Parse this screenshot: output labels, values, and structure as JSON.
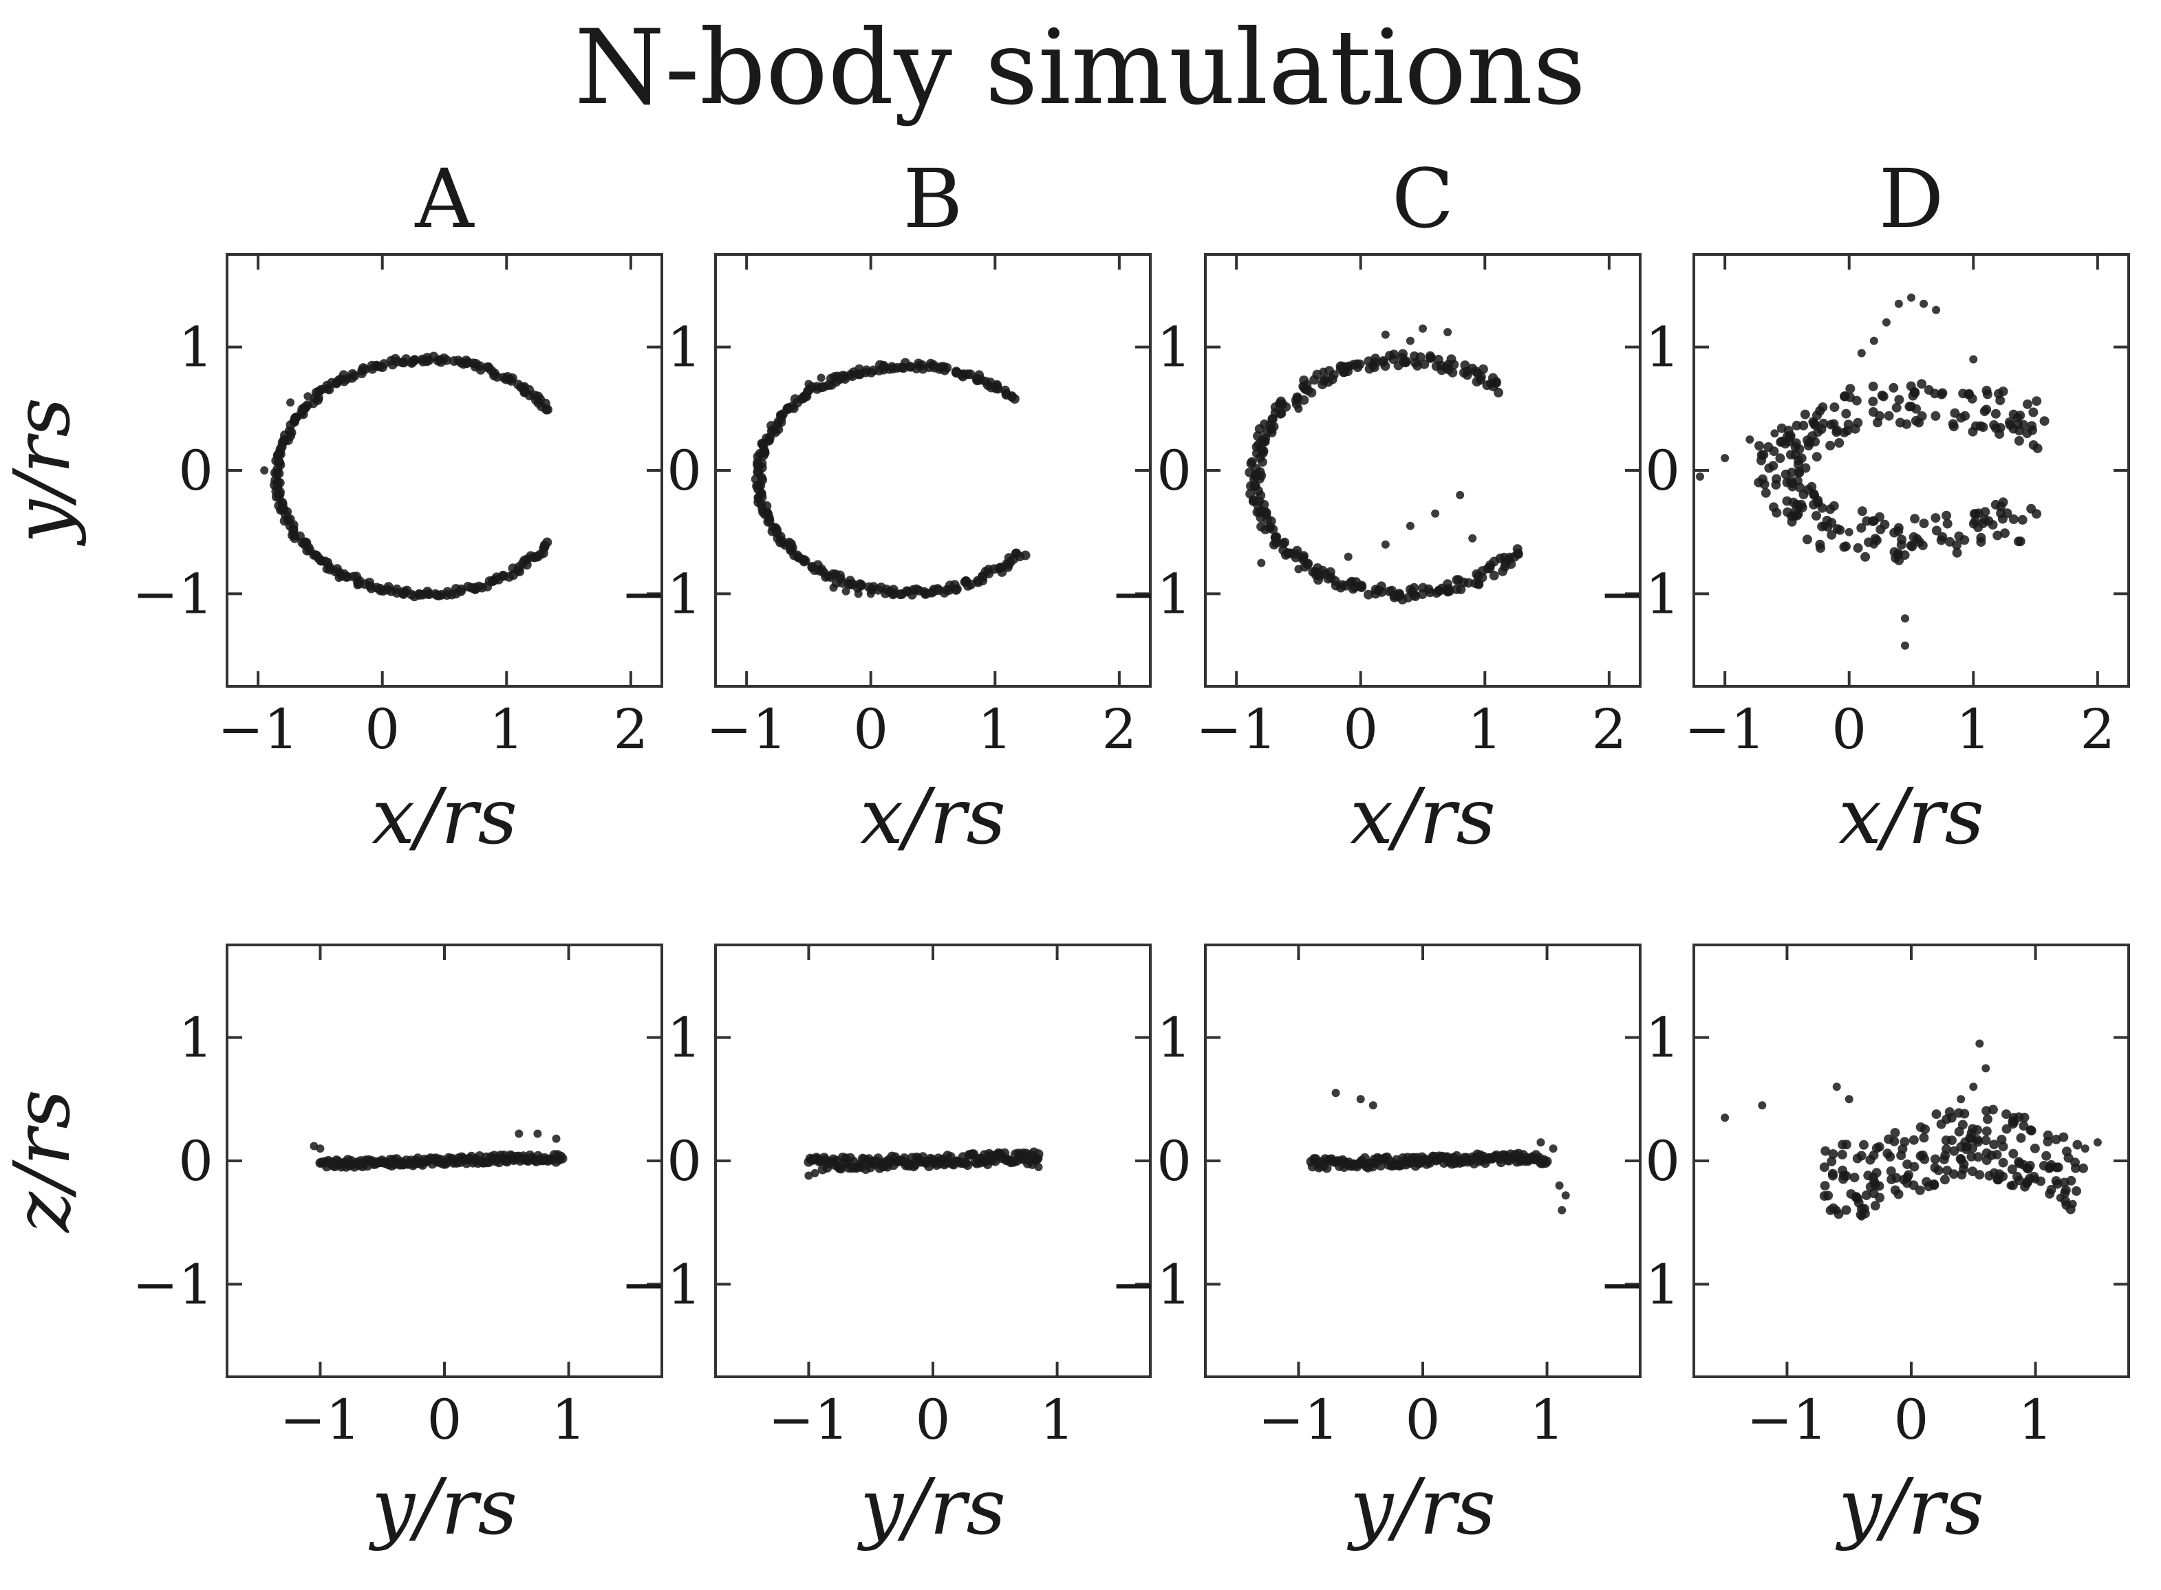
{
  "figure": {
    "title": "N-body simulations",
    "row_ylabels": [
      "y/r_s",
      "z/r_s"
    ],
    "row_xlabels": [
      "x/r_s",
      "y/r_s"
    ]
  },
  "colors": {
    "points": "#1a1a1a",
    "axes": "#333333",
    "background": "#ffffff"
  },
  "chart_data": [
    {
      "type": "scatter",
      "panel": "A",
      "row": "top",
      "title": "A",
      "xlabel": "x/r_s",
      "ylabel": "y/r_s",
      "xlim": [
        -1.25,
        2.25
      ],
      "ylim": [
        -1.75,
        1.75
      ],
      "xticks": [
        -1,
        0,
        1,
        2
      ],
      "yticks": [
        -1,
        0,
        1
      ],
      "description": "tight thin elliptical arc",
      "shape": {
        "kind": "arc",
        "cx": 0.35,
        "cy": -0.05,
        "a": 1.2,
        "b": 0.95,
        "t0": 35,
        "t1": 325,
        "w": 0.025
      },
      "points": [
        [
          -0.74,
          0.55
        ],
        [
          -0.6,
          0.6
        ],
        [
          -0.5,
          0.65
        ],
        [
          -0.95,
          0.0
        ],
        [
          -0.45,
          -0.8
        ],
        [
          -0.35,
          -0.87
        ],
        [
          -0.2,
          -0.93
        ]
      ]
    },
    {
      "type": "scatter",
      "panel": "B",
      "row": "top",
      "title": "B",
      "xlabel": "x/r_s",
      "ylabel": "y/r_s",
      "xlim": [
        -1.25,
        2.25
      ],
      "ylim": [
        -1.75,
        1.75
      ],
      "xticks": [
        -1,
        0,
        1,
        2
      ],
      "yticks": [
        -1,
        0,
        1
      ],
      "description": "tight thin elliptical arc",
      "shape": {
        "kind": "arc",
        "cx": 0.3,
        "cy": -0.07,
        "a": 1.2,
        "b": 0.92,
        "t0": 45,
        "t1": 320,
        "w": 0.03
      },
      "points": [
        [
          -0.5,
          0.7
        ],
        [
          -0.4,
          0.75
        ],
        [
          -0.3,
          -0.95
        ],
        [
          -0.2,
          -0.98
        ],
        [
          -0.1,
          -1.0
        ],
        [
          0.0,
          -1.0
        ]
      ]
    },
    {
      "type": "scatter",
      "panel": "C",
      "row": "top",
      "title": "C",
      "xlabel": "x/r_s",
      "ylabel": "y/r_s",
      "xlim": [
        -1.25,
        2.25
      ],
      "ylim": [
        -1.75,
        1.75
      ],
      "xticks": [
        -1,
        0,
        1,
        2
      ],
      "yticks": [
        -1,
        0,
        1
      ],
      "description": "elliptical arc with scattered particles near the ends",
      "shape": {
        "kind": "arc",
        "cx": 0.35,
        "cy": -0.05,
        "a": 1.2,
        "b": 0.95,
        "t0": 50,
        "t1": 320,
        "w": 0.05
      },
      "points": [
        [
          0.2,
          1.1
        ],
        [
          0.5,
          1.15
        ],
        [
          0.7,
          1.12
        ],
        [
          0.4,
          1.05
        ],
        [
          -0.5,
          0.5
        ],
        [
          -0.3,
          0.8
        ],
        [
          -0.8,
          -0.75
        ],
        [
          -0.5,
          -0.8
        ],
        [
          0.8,
          -0.2
        ],
        [
          0.6,
          -0.35
        ],
        [
          0.4,
          -0.45
        ],
        [
          0.9,
          -0.55
        ],
        [
          0.2,
          -0.6
        ],
        [
          -0.1,
          -0.7
        ],
        [
          1.2,
          -0.7
        ]
      ]
    },
    {
      "type": "scatter",
      "panel": "D",
      "row": "top",
      "title": "D",
      "xlabel": "x/r_s",
      "ylabel": "y/r_s",
      "xlim": [
        -1.25,
        2.25
      ],
      "ylim": [
        -1.75,
        1.75
      ],
      "xticks": [
        -1,
        0,
        1,
        2
      ],
      "yticks": [
        -1,
        0,
        1
      ],
      "description": "broad diffuse arc with a detached clump near the top",
      "shape": {
        "kind": "arc",
        "cx": 0.55,
        "cy": 0.0,
        "a": 1.1,
        "b": 0.55,
        "t0": 30,
        "t1": 320,
        "w": 0.18
      },
      "points": [
        [
          0.4,
          1.35
        ],
        [
          0.5,
          1.4
        ],
        [
          0.6,
          1.35
        ],
        [
          0.7,
          1.3
        ],
        [
          0.3,
          1.2
        ],
        [
          0.2,
          1.05
        ],
        [
          0.1,
          0.95
        ],
        [
          -1.2,
          -0.05
        ],
        [
          -1.0,
          0.1
        ],
        [
          -0.8,
          0.25
        ],
        [
          -0.6,
          0.3
        ],
        [
          -0.4,
          -0.3
        ],
        [
          -0.2,
          -0.45
        ],
        [
          0.0,
          -0.5
        ],
        [
          0.45,
          -1.2
        ],
        [
          0.45,
          -1.42
        ],
        [
          0.2,
          -0.6
        ],
        [
          1.0,
          0.9
        ]
      ]
    },
    {
      "type": "scatter",
      "panel": "A",
      "row": "bottom",
      "xlabel": "y/r_s",
      "ylabel": "z/r_s",
      "xlim": [
        -1.75,
        1.75
      ],
      "ylim": [
        -1.75,
        1.75
      ],
      "xticks": [
        -1,
        0,
        1
      ],
      "yticks": [
        -1,
        0,
        1
      ],
      "description": "thin nearly flat band",
      "shape": {
        "kind": "band",
        "x0": -1.0,
        "x1": 0.95,
        "w": 0.03
      },
      "points": [
        [
          -1.05,
          0.12
        ],
        [
          -1.0,
          0.1
        ],
        [
          0.6,
          0.22
        ],
        [
          0.75,
          0.22
        ],
        [
          0.9,
          0.18
        ]
      ]
    },
    {
      "type": "scatter",
      "panel": "B",
      "row": "bottom",
      "xlabel": "y/r_s",
      "ylabel": "z/r_s",
      "xlim": [
        -1.75,
        1.75
      ],
      "ylim": [
        -1.75,
        1.75
      ],
      "xticks": [
        -1,
        0,
        1
      ],
      "yticks": [
        -1,
        0,
        1
      ],
      "description": "thin nearly flat band",
      "shape": {
        "kind": "band",
        "x0": -1.0,
        "x1": 0.85,
        "w": 0.05
      },
      "points": [
        [
          -1.0,
          -0.12
        ],
        [
          -0.95,
          -0.1
        ],
        [
          0.85,
          0.02
        ],
        [
          0.85,
          -0.05
        ]
      ]
    },
    {
      "type": "scatter",
      "panel": "C",
      "row": "bottom",
      "xlabel": "y/r_s",
      "ylabel": "z/r_s",
      "xlim": [
        -1.75,
        1.75
      ],
      "ylim": [
        -1.75,
        1.75
      ],
      "xticks": [
        -1,
        0,
        1
      ],
      "yticks": [
        -1,
        0,
        1
      ],
      "description": "flat band with a dense clump near y = -1",
      "shape": {
        "kind": "band",
        "x0": -0.9,
        "x1": 1.0,
        "w": 0.04
      },
      "points": [
        [
          -0.7,
          0.55
        ],
        [
          -0.5,
          0.5
        ],
        [
          -0.4,
          0.45
        ],
        [
          1.1,
          -0.2
        ],
        [
          1.15,
          -0.28
        ],
        [
          1.12,
          -0.4
        ],
        [
          1.05,
          0.1
        ],
        [
          0.95,
          0.15
        ]
      ]
    },
    {
      "type": "scatter",
      "panel": "D",
      "row": "bottom",
      "xlabel": "y/r_s",
      "ylabel": "z/r_s",
      "xlim": [
        -1.75,
        1.75
      ],
      "ylim": [
        -1.75,
        1.75
      ],
      "xticks": [
        -1,
        0,
        1
      ],
      "yticks": [
        -1,
        0,
        1
      ],
      "description": "two broad wedge-shaped clusters with a scattered tail",
      "shape": {
        "kind": "cloud",
        "x0": -0.7,
        "x1": 1.4,
        "w": 0.3
      },
      "points": [
        [
          -1.5,
          0.35
        ],
        [
          -1.2,
          0.45
        ],
        [
          0.55,
          0.95
        ],
        [
          0.6,
          0.75
        ],
        [
          0.5,
          0.6
        ],
        [
          0.4,
          0.5
        ],
        [
          -0.6,
          0.6
        ],
        [
          -0.5,
          0.5
        ],
        [
          1.2,
          -0.3
        ],
        [
          1.3,
          -0.35
        ],
        [
          1.4,
          0.1
        ],
        [
          1.5,
          0.15
        ],
        [
          1.0,
          -0.15
        ],
        [
          0.8,
          -0.2
        ],
        [
          -0.6,
          -0.4
        ],
        [
          -0.4,
          -0.45
        ]
      ]
    }
  ]
}
